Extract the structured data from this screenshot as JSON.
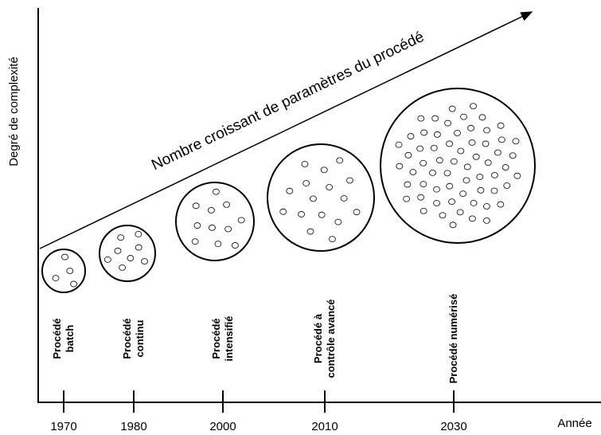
{
  "axis": {
    "y_label": "Degré de complexité",
    "x_label": "Année"
  },
  "trend_label": "Nombre croissant de paramètres du procédé",
  "stages": [
    {
      "year": "1970",
      "label": [
        "Procédé",
        "batch"
      ]
    },
    {
      "year": "1980",
      "label": [
        "Procédé",
        "continu"
      ]
    },
    {
      "year": "2000",
      "label": [
        "Procédé",
        "intensifié"
      ]
    },
    {
      "year": "2010",
      "label": [
        "Procédé à",
        "contrôle avancé"
      ]
    },
    {
      "year": "2030",
      "label": [
        "Procédé numérisé"
      ]
    }
  ]
}
